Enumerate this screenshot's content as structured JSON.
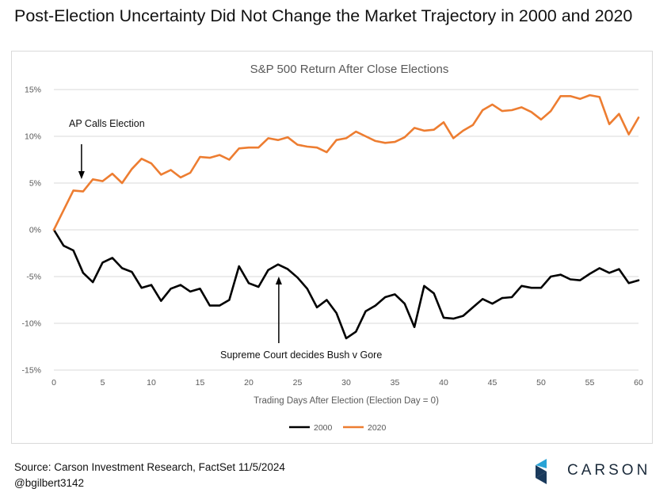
{
  "headline": "Post-Election Uncertainty Did Not Change the Market Trajectory in 2000 and 2020",
  "source_line": "Source: Carson Investment Research, FactSet 11/5/2024",
  "handle": "@bgilbert3142",
  "logo_text": "CARSON",
  "colors": {
    "series_2000": "#000000",
    "series_2020": "#ED7D31",
    "grid": "#d9d9d9",
    "logo_dark": "#1a3a5c",
    "logo_light": "#29a3d6"
  },
  "chart_data": {
    "type": "line",
    "title": "S&P 500 Return After Close Elections",
    "xlabel": "Trading Days After Election (Election Day = 0)",
    "ylabel": "",
    "xlim": [
      0,
      60
    ],
    "ylim": [
      -15,
      15
    ],
    "xticks": [
      0,
      5,
      10,
      15,
      20,
      25,
      30,
      35,
      40,
      45,
      50,
      55,
      60
    ],
    "xtick_labels": [
      "0",
      "5",
      "10",
      "15",
      "20",
      "25",
      "30",
      "35",
      "40",
      "45",
      "50",
      "55",
      "60"
    ],
    "yticks": [
      -15,
      -10,
      -5,
      0,
      5,
      10,
      15
    ],
    "ytick_labels": [
      "-15%",
      "-10%",
      "-5%",
      "0%",
      "5%",
      "10%",
      "15%"
    ],
    "grid": true,
    "legend_position": "bottom-center",
    "x": [
      0,
      1,
      2,
      3,
      4,
      5,
      6,
      7,
      8,
      9,
      10,
      11,
      12,
      13,
      14,
      15,
      16,
      17,
      18,
      19,
      20,
      21,
      22,
      23,
      24,
      25,
      26,
      27,
      28,
      29,
      30,
      31,
      32,
      33,
      34,
      35,
      36,
      37,
      38,
      39,
      40,
      41,
      42,
      43,
      44,
      45,
      46,
      47,
      48,
      49,
      50,
      51,
      52,
      53,
      54,
      55,
      56,
      57,
      58,
      59,
      60
    ],
    "series": [
      {
        "name": "2000",
        "color": "#000000",
        "values": [
          0,
          -1.7,
          -2.2,
          -4.6,
          -5.6,
          -3.5,
          -3.0,
          -4.1,
          -4.5,
          -6.2,
          -5.9,
          -7.6,
          -6.3,
          -5.9,
          -6.6,
          -6.3,
          -8.1,
          -8.1,
          -7.5,
          -3.9,
          -5.7,
          -6.1,
          -4.3,
          -3.7,
          -4.2,
          -5.1,
          -6.3,
          -8.3,
          -7.5,
          -8.9,
          -11.6,
          -10.9,
          -8.7,
          -8.1,
          -7.2,
          -6.9,
          -7.9,
          -10.4,
          -6.0,
          -6.8,
          -9.4,
          -9.5,
          -9.2,
          -8.3,
          -7.4,
          -7.9,
          -7.3,
          -7.2,
          -6.0,
          -6.2,
          -6.2,
          -5.0,
          -4.8,
          -5.3,
          -5.4,
          -4.7,
          -4.1,
          -4.6,
          -4.2,
          -5.7,
          -5.4
        ]
      },
      {
        "name": "2020",
        "color": "#ED7D31",
        "values": [
          0,
          2.1,
          4.2,
          4.1,
          5.4,
          5.2,
          6.0,
          5.0,
          6.5,
          7.6,
          7.1,
          5.9,
          6.4,
          5.6,
          6.1,
          7.8,
          7.7,
          8.0,
          7.5,
          8.7,
          8.8,
          8.8,
          9.8,
          9.6,
          9.9,
          9.1,
          8.9,
          8.8,
          8.3,
          9.6,
          9.8,
          10.5,
          10.0,
          9.5,
          9.3,
          9.4,
          9.9,
          10.9,
          10.6,
          10.7,
          11.5,
          9.8,
          10.6,
          11.2,
          12.8,
          13.4,
          12.7,
          12.8,
          13.1,
          12.6,
          11.8,
          12.7,
          14.3,
          14.3,
          14.0,
          14.4,
          14.2,
          11.3,
          12.4,
          10.2,
          12.0
        ]
      }
    ],
    "annotations": [
      {
        "text": "AP Calls Election",
        "x": 3,
        "y": 5.3,
        "series": "2020"
      },
      {
        "text": "Supreme Court decides Bush v Gore",
        "x": 23,
        "y": -3.7,
        "series": "2000"
      }
    ]
  }
}
